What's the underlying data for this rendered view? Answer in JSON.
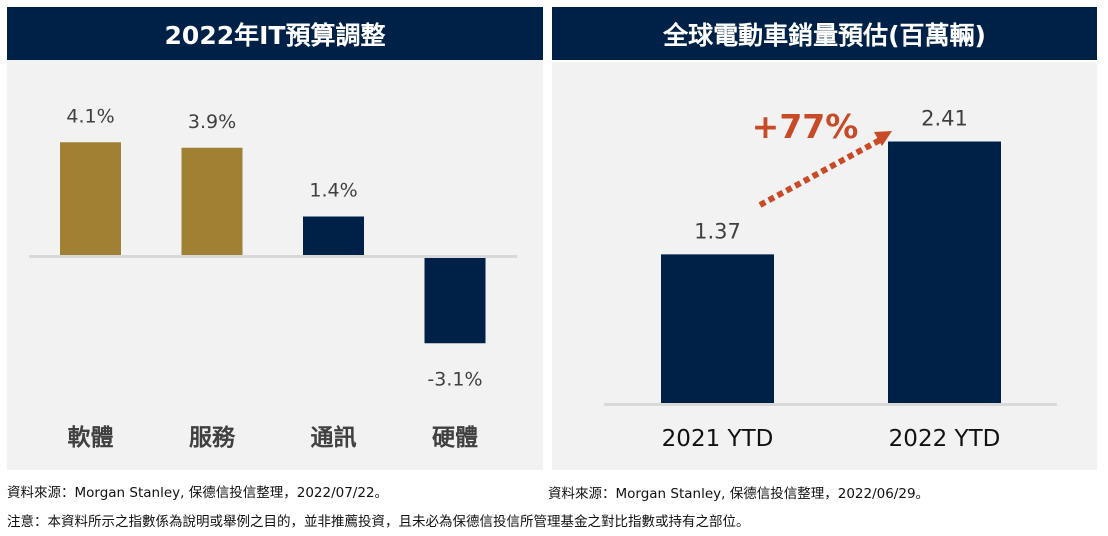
{
  "colors": {
    "header_bg": "#002147",
    "panel_bg": "#f2f2f2",
    "gold": "#a08032",
    "navy": "#002147",
    "axis": "#d9d9d9",
    "accent": "#c84b28",
    "label_text": "#404040"
  },
  "chart_data": [
    {
      "type": "bar",
      "title": "2022年IT預算調整",
      "categories": [
        "軟體",
        "服務",
        "通訊",
        "硬體"
      ],
      "values": [
        4.1,
        3.9,
        1.4,
        -3.1
      ],
      "data_labels": [
        "4.1%",
        "3.9%",
        "1.4%",
        "-3.1%"
      ],
      "bar_colors": [
        "#a08032",
        "#a08032",
        "#002147",
        "#002147"
      ],
      "xlabel": "",
      "ylabel": "",
      "ylim": [
        -3.1,
        4.1
      ],
      "grid": false,
      "legend": "none"
    },
    {
      "type": "bar",
      "title": "全球電動車銷量預估(百萬輛)",
      "categories": [
        "2021 YTD",
        "2022 YTD"
      ],
      "values": [
        1.37,
        2.41
      ],
      "data_labels": [
        "1.37",
        "2.41"
      ],
      "bar_colors": [
        "#002147",
        "#002147"
      ],
      "xlabel": "",
      "ylabel": "",
      "ylim": [
        0,
        2.41
      ],
      "grid": false,
      "legend": "none",
      "annotation": {
        "text": "+77%",
        "type": "dotted-arrow",
        "from": "2021 YTD",
        "to": "2022 YTD"
      }
    }
  ],
  "footer": {
    "source_left": "資料來源：Morgan Stanley, 保德信投信整理，2022/07/22。",
    "source_right": "資料來源：Morgan Stanley, 保德信投信整理，2022/06/29。",
    "disclaimer": "注意：本資料所示之指數係為說明或舉例之目的，並非推薦投資，且未必為保德信投信所管理基金之對比指數或持有之部位。"
  }
}
